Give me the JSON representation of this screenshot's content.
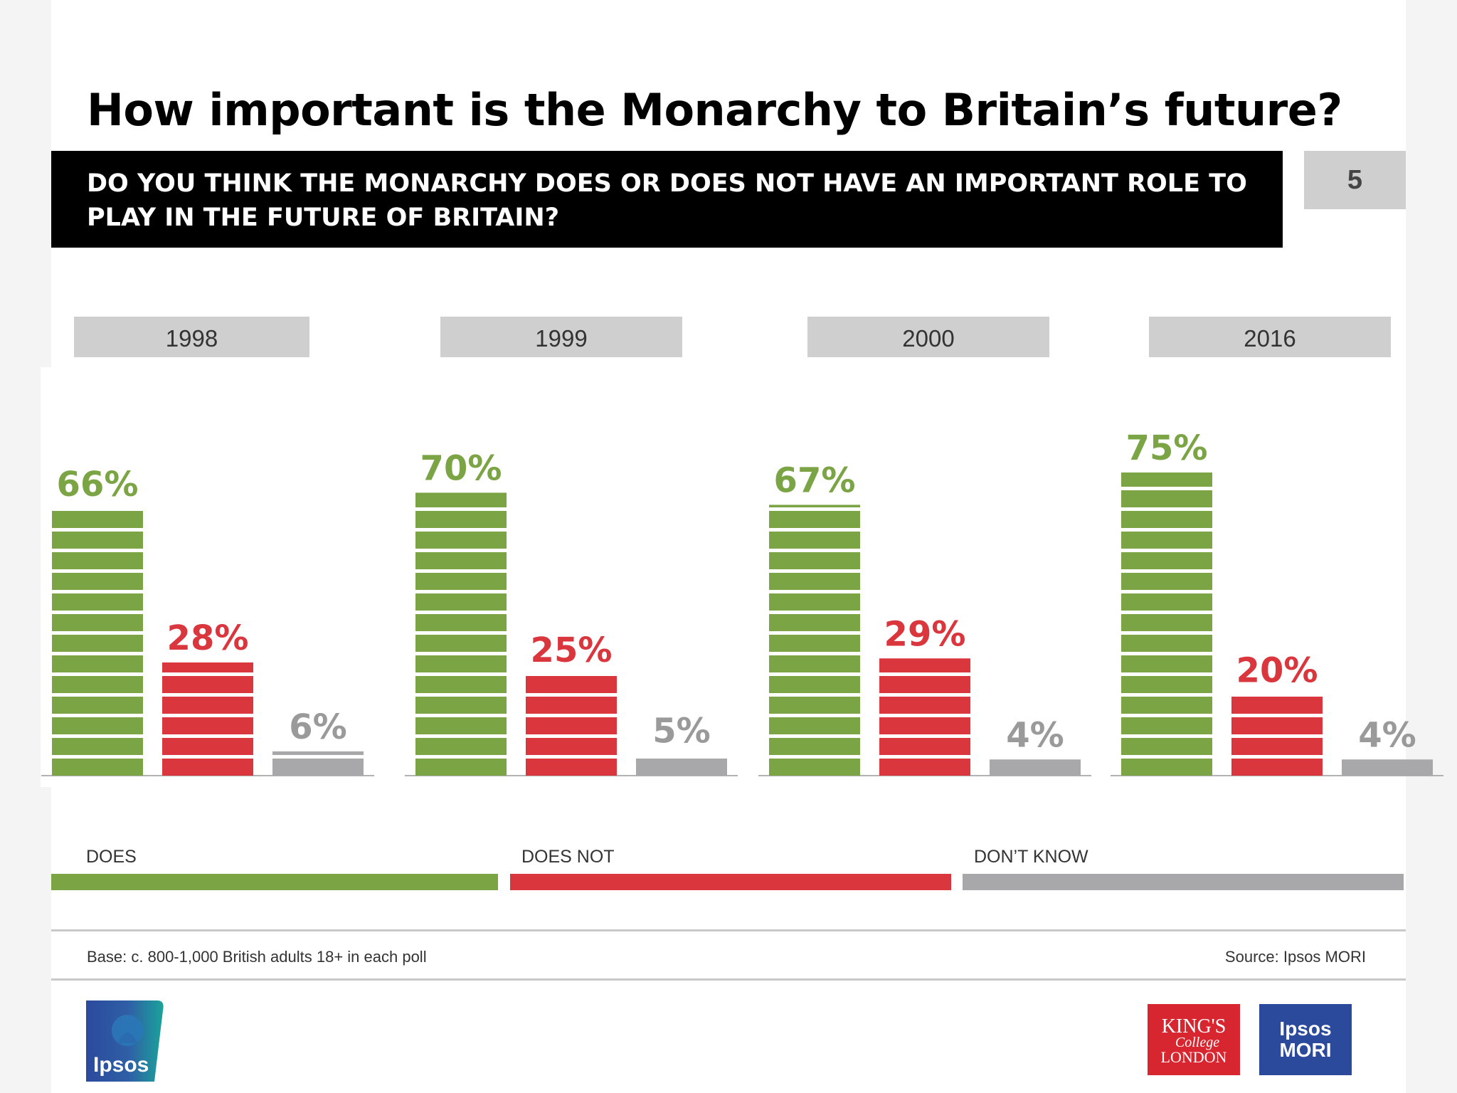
{
  "title": "How important is the Monarchy to Britain’s future?",
  "question": "DO YOU THINK THE MONARCHY DOES OR DOES NOT HAVE AN IMPORTANT ROLE TO PLAY IN THE FUTURE OF BRITAIN?",
  "page_number": "5",
  "legend": {
    "does": "DOES",
    "does_not": "DOES NOT",
    "dont_know": "DON’T KNOW"
  },
  "footer": {
    "base": "Base: c. 800-1,000  British adults 18+ in each poll",
    "source": "Source: Ipsos MORI"
  },
  "logos": {
    "ipsos": "Ipsos",
    "kings_line1": "KING'S",
    "kings_line2": "College",
    "kings_line3": "LONDON",
    "ipsos_mori_line1": "Ipsos",
    "ipsos_mori_line2": "MORI"
  },
  "colors": {
    "does": "#7ba444",
    "does_not": "#d9363e",
    "dont_know": "#a8a8aa",
    "header_grey": "#cfcfcf",
    "label_grey": "#9a9a9a",
    "ipsos_blue": "#2b4a9c",
    "ipsos_teal": "#1aa39a",
    "kings_red": "#d7262f"
  },
  "chart_data": {
    "type": "bar",
    "categories": [
      "1998",
      "1999",
      "2000",
      "2016"
    ],
    "series": [
      {
        "name": "DOES",
        "values": [
          66,
          70,
          67,
          75
        ]
      },
      {
        "name": "DOES NOT",
        "values": [
          28,
          25,
          29,
          20
        ]
      },
      {
        "name": "DON’T KNOW",
        "values": [
          6,
          5,
          4,
          4
        ]
      }
    ],
    "value_suffix": "%",
    "legend_position": "bottom"
  }
}
